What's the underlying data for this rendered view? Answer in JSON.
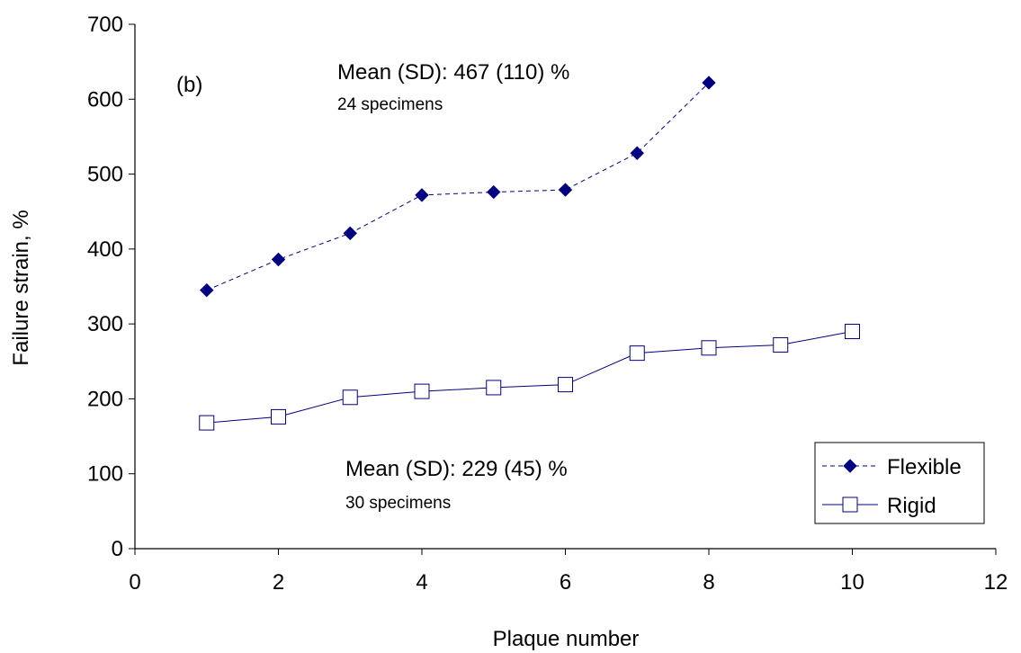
{
  "chart_data": {
    "type": "line",
    "panel_label": "(b)",
    "xlabel": "Plaque number",
    "ylabel": "Failure strain, %",
    "xlim": [
      0,
      12
    ],
    "ylim": [
      0,
      700
    ],
    "xticks": [
      0,
      2,
      4,
      6,
      8,
      10,
      12
    ],
    "yticks": [
      0,
      100,
      200,
      300,
      400,
      500,
      600,
      700
    ],
    "grid": false,
    "legend_position": "bottom-right",
    "series": [
      {
        "name": "Flexible",
        "marker": "filled-diamond",
        "line_style": "dashed",
        "color": "#000080",
        "x": [
          1,
          2,
          3,
          4,
          5,
          6,
          7,
          8
        ],
        "y": [
          345,
          386,
          421,
          472,
          476,
          479,
          528,
          622
        ]
      },
      {
        "name": "Rigid",
        "marker": "open-square",
        "line_style": "solid",
        "color": "#000080",
        "x": [
          1,
          2,
          3,
          4,
          5,
          6,
          7,
          8,
          9,
          10
        ],
        "y": [
          168,
          176,
          202,
          210,
          215,
          219,
          261,
          268,
          272,
          290
        ]
      }
    ],
    "annotations": [
      {
        "text": "Mean (SD): 467 (110) %",
        "style": "big"
      },
      {
        "text": "24 specimens",
        "style": "small"
      },
      {
        "text": "Mean (SD): 229 (45) %",
        "style": "big"
      },
      {
        "text": "30 specimens",
        "style": "small"
      }
    ]
  }
}
